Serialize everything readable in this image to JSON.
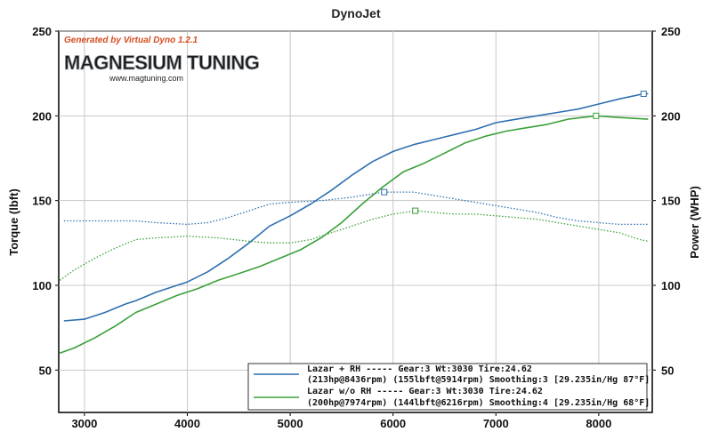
{
  "chart_data": {
    "type": "line",
    "title": "DynoJet",
    "xlabel": "",
    "ylabel_left": "Torque (lbft)",
    "ylabel_right": "Power (WHP)",
    "xlim": [
      2750,
      8520
    ],
    "ylim": [
      25,
      250
    ],
    "x_ticks": [
      3000,
      4000,
      5000,
      6000,
      7000,
      8000
    ],
    "y_ticks_left": [
      50,
      100,
      150,
      200,
      250
    ],
    "y_ticks_right": [
      50,
      100,
      150,
      200,
      250
    ],
    "grid": true,
    "legend_position": "bottom-right",
    "watermark": {
      "generated_by": "Generated by Virtual Dyno 1.2.1",
      "logo": "MAGNESIUM TUNING",
      "url": "www.magtuning.com"
    },
    "series": [
      {
        "name": "Lazar + RH",
        "legend_line1": "Lazar + RH ----- Gear:3 Wt:3030 Tire:24.62",
        "legend_line2": "(213hp@8436rpm) (155lbft@5914rpm) Smoothing:3 [29.235in/Hg 87°F]",
        "color": "#2e6fb0",
        "kind": "power",
        "peak": [
          8436,
          213
        ],
        "points": [
          [
            2800,
            79
          ],
          [
            3000,
            80
          ],
          [
            3200,
            84
          ],
          [
            3400,
            89
          ],
          [
            3500,
            91
          ],
          [
            3700,
            96
          ],
          [
            3900,
            100
          ],
          [
            4000,
            102
          ],
          [
            4200,
            108
          ],
          [
            4400,
            116
          ],
          [
            4600,
            125
          ],
          [
            4800,
            135
          ],
          [
            5000,
            141
          ],
          [
            5200,
            148
          ],
          [
            5400,
            156
          ],
          [
            5600,
            165
          ],
          [
            5800,
            173
          ],
          [
            6000,
            179
          ],
          [
            6200,
            183
          ],
          [
            6400,
            186
          ],
          [
            6600,
            189
          ],
          [
            6800,
            192
          ],
          [
            7000,
            196
          ],
          [
            7200,
            198
          ],
          [
            7400,
            200
          ],
          [
            7600,
            202
          ],
          [
            7800,
            204
          ],
          [
            8000,
            207
          ],
          [
            8200,
            210
          ],
          [
            8436,
            213
          ],
          [
            8480,
            213
          ]
        ]
      },
      {
        "name": "Lazar + RH",
        "color": "#2e6fb0",
        "kind": "torque",
        "peak": [
          5914,
          155
        ],
        "points": [
          [
            2800,
            138
          ],
          [
            3000,
            138
          ],
          [
            3200,
            138
          ],
          [
            3500,
            138
          ],
          [
            3700,
            137
          ],
          [
            4000,
            136
          ],
          [
            4200,
            137
          ],
          [
            4400,
            140
          ],
          [
            4600,
            144
          ],
          [
            4800,
            148
          ],
          [
            5000,
            149
          ],
          [
            5300,
            150
          ],
          [
            5600,
            152
          ],
          [
            5914,
            155
          ],
          [
            6200,
            155
          ],
          [
            6400,
            153
          ],
          [
            6600,
            151
          ],
          [
            6800,
            149
          ],
          [
            7000,
            147
          ],
          [
            7200,
            145
          ],
          [
            7400,
            143
          ],
          [
            7600,
            140
          ],
          [
            7800,
            138
          ],
          [
            8000,
            137
          ],
          [
            8200,
            136
          ],
          [
            8480,
            136
          ]
        ]
      },
      {
        "name": "Lazar w/o RH",
        "legend_line1": "Lazar w/o RH ----- Gear:3 Wt:3030 Tire:24.62",
        "legend_line2": "(200hp@7974rpm) (144lbft@6216rpm) Smoothing:4 [29.235in/Hg 68°F]",
        "color": "#3aa03a",
        "kind": "power",
        "peak": [
          7974,
          200
        ],
        "points": [
          [
            2760,
            60
          ],
          [
            2900,
            63
          ],
          [
            3100,
            69
          ],
          [
            3300,
            76
          ],
          [
            3500,
            84
          ],
          [
            3700,
            89
          ],
          [
            3900,
            94
          ],
          [
            4100,
            98
          ],
          [
            4300,
            103
          ],
          [
            4500,
            107
          ],
          [
            4700,
            111
          ],
          [
            4900,
            116
          ],
          [
            5100,
            121
          ],
          [
            5300,
            128
          ],
          [
            5500,
            137
          ],
          [
            5700,
            148
          ],
          [
            5900,
            158
          ],
          [
            6100,
            167
          ],
          [
            6300,
            172
          ],
          [
            6500,
            178
          ],
          [
            6700,
            184
          ],
          [
            6900,
            188
          ],
          [
            7100,
            191
          ],
          [
            7300,
            193
          ],
          [
            7500,
            195
          ],
          [
            7700,
            198
          ],
          [
            7974,
            200
          ],
          [
            8200,
            199
          ],
          [
            8480,
            198
          ]
        ]
      },
      {
        "name": "Lazar w/o RH",
        "color": "#3aa03a",
        "kind": "torque",
        "peak": [
          6216,
          144
        ],
        "points": [
          [
            2760,
            103
          ],
          [
            2900,
            109
          ],
          [
            3100,
            116
          ],
          [
            3300,
            122
          ],
          [
            3500,
            127
          ],
          [
            3700,
            128
          ],
          [
            4000,
            129
          ],
          [
            4300,
            128
          ],
          [
            4600,
            126
          ],
          [
            4800,
            125
          ],
          [
            5000,
            125
          ],
          [
            5200,
            127
          ],
          [
            5400,
            131
          ],
          [
            5600,
            135
          ],
          [
            5800,
            139
          ],
          [
            6000,
            142
          ],
          [
            6216,
            144
          ],
          [
            6400,
            143
          ],
          [
            6600,
            142
          ],
          [
            6800,
            142
          ],
          [
            7000,
            141
          ],
          [
            7200,
            140
          ],
          [
            7400,
            139
          ],
          [
            7600,
            137
          ],
          [
            7800,
            135
          ],
          [
            8000,
            133
          ],
          [
            8200,
            131
          ],
          [
            8400,
            127
          ],
          [
            8480,
            126
          ]
        ]
      }
    ]
  }
}
